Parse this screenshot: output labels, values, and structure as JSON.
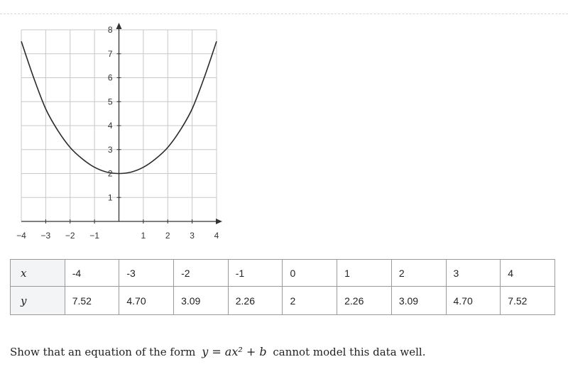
{
  "chart_data": {
    "type": "line",
    "xlim": [
      -4,
      4
    ],
    "ylim": [
      0,
      8
    ],
    "grid": true,
    "x_tick_labels": [
      "−4",
      "−3",
      "−2",
      "−1",
      "1",
      "2",
      "3",
      "4"
    ],
    "y_tick_labels": [
      "1",
      "2",
      "3",
      "4",
      "5",
      "6",
      "7",
      "8"
    ],
    "series": [
      {
        "x": [
          -4,
          -3.5,
          -3,
          -2.5,
          -2,
          -1.5,
          -1,
          -0.5,
          0,
          0.5,
          1,
          1.5,
          2,
          2.5,
          3,
          3.5,
          4
        ],
        "y": [
          7.52,
          6.02,
          4.7,
          3.79,
          3.09,
          2.61,
          2.26,
          2.06,
          2.0,
          2.06,
          2.26,
          2.61,
          3.09,
          3.79,
          4.7,
          6.02,
          7.52
        ]
      }
    ]
  },
  "table": {
    "rows": [
      {
        "label": "x",
        "values": [
          "-4",
          "-3",
          "-2",
          "-1",
          "0",
          "1",
          "2",
          "3",
          "4"
        ]
      },
      {
        "label": "y",
        "values": [
          "7.52",
          "4.70",
          "3.09",
          "2.26",
          "2",
          "2.26",
          "3.09",
          "4.70",
          "7.52"
        ]
      }
    ]
  },
  "question": {
    "before": "Show that an equation of the form",
    "equation": "y = ax² + b",
    "after": "cannot model this data well."
  }
}
